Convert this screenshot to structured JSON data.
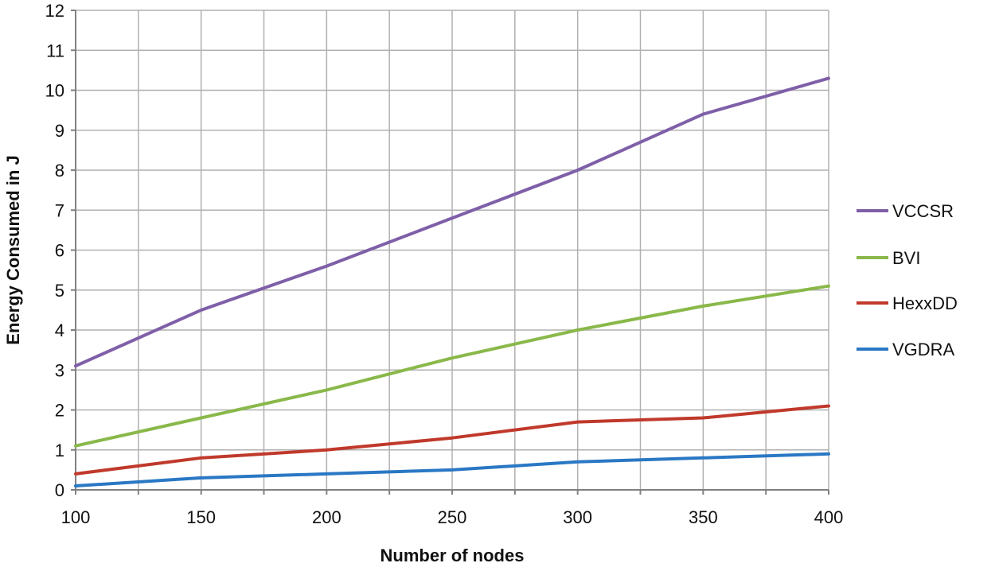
{
  "chart_data": {
    "type": "line",
    "title": "",
    "xlabel": "Number of nodes",
    "ylabel": "Energy Consumed in J",
    "x": [
      100,
      150,
      200,
      250,
      300,
      350,
      400
    ],
    "xticks": [
      "100",
      "150",
      "200",
      "250",
      "300",
      "350",
      "400"
    ],
    "yticks": [
      "0",
      "1",
      "2",
      "3",
      "4",
      "5",
      "6",
      "7",
      "8",
      "9",
      "10",
      "11",
      "12"
    ],
    "xlim": [
      100,
      400
    ],
    "ylim": [
      0,
      12
    ],
    "grid": true,
    "legend_position": "right",
    "series": [
      {
        "name": "VCCSR",
        "color": "#7f5fa8",
        "values": [
          3.1,
          4.5,
          5.6,
          6.8,
          8.0,
          9.4,
          10.3
        ]
      },
      {
        "name": "BVI",
        "color": "#8ab84a",
        "values": [
          1.1,
          1.8,
          2.5,
          3.3,
          4.0,
          4.6,
          5.1
        ]
      },
      {
        "name": "HexxDD",
        "color": "#c0392b",
        "values": [
          0.4,
          0.8,
          1.0,
          1.3,
          1.7,
          1.8,
          2.1
        ]
      },
      {
        "name": "VGDRA",
        "color": "#2a78c4",
        "values": [
          0.1,
          0.3,
          0.4,
          0.5,
          0.7,
          0.8,
          0.9
        ]
      }
    ]
  }
}
